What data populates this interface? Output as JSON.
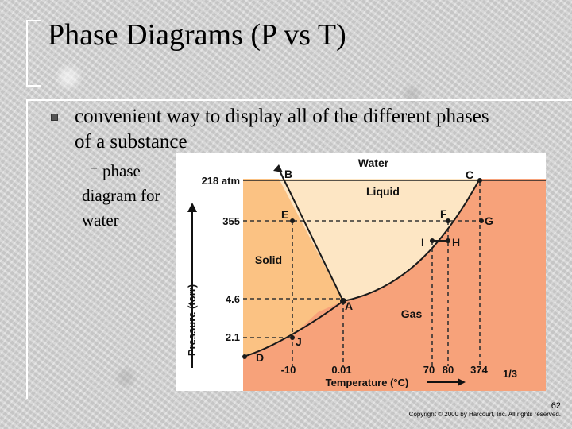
{
  "slide": {
    "title": "Phase Diagrams (P vs T)",
    "bullet": "convenient way to display all of the different phases of a substance",
    "sub_bullet": "phase diagram for water",
    "page_number": "62",
    "copyright": "Copyright © 2000 by Harcourt, Inc. All rights reserved."
  },
  "diagram": {
    "title": "Water",
    "regions": {
      "liquid": "Liquid",
      "solid": "Solid",
      "gas": "Gas"
    },
    "points": {
      "B": "B",
      "C": "C",
      "E": "E",
      "F": "F",
      "G": "G",
      "I": "I",
      "H": "H",
      "A": "A",
      "J": "J",
      "D": "D"
    },
    "y_ticks": [
      "218 atm",
      "355",
      "4.6",
      "2.1"
    ],
    "x_ticks": [
      "-10",
      "0.01",
      "70",
      "80",
      "374",
      "1/3"
    ],
    "y_axis_label": "Pressure (torr)",
    "x_axis_label": "Temperature (°C)",
    "colors": {
      "liquid": "#fde6c4",
      "solid": "#fbc283",
      "gas": "#f7a27a",
      "dashed_line": "#333333"
    }
  }
}
